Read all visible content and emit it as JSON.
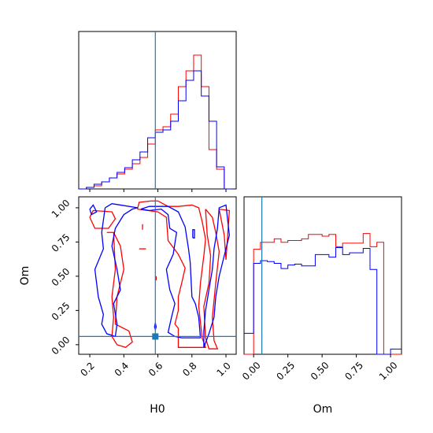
{
  "chart_data": {
    "type": "corner",
    "parameters": [
      "H0",
      "Om"
    ],
    "colors": {
      "run_a": "#ff0000",
      "run_b": "#0000ff",
      "truth": "#1f77b4"
    },
    "truth": {
      "H0": 0.585,
      "Om": 0.06
    },
    "xlabel_h0": "H0",
    "xlabel_om": "Om",
    "ylabel_om": "Om",
    "h0_ticks": [
      {
        "value": 0.2,
        "label": "0.2"
      },
      {
        "value": 0.4,
        "label": "0.4"
      },
      {
        "value": 0.6,
        "label": "0.6"
      },
      {
        "value": 0.8,
        "label": "0.8"
      },
      {
        "value": 1.0,
        "label": "1.0"
      }
    ],
    "om_ticks": [
      {
        "value": 0.0,
        "label": "0.00"
      },
      {
        "value": 0.25,
        "label": "0.25"
      },
      {
        "value": 0.5,
        "label": "0.50"
      },
      {
        "value": 0.75,
        "label": "0.75"
      },
      {
        "value": 1.0,
        "label": "1.00"
      }
    ],
    "h0_range": [
      0.135,
      1.06
    ],
    "om_range": [
      -0.07,
      1.08
    ],
    "hist_h0": {
      "edges": [
        0.135,
        0.18,
        0.225,
        0.27,
        0.315,
        0.36,
        0.405,
        0.45,
        0.495,
        0.54,
        0.585,
        0.63,
        0.675,
        0.72,
        0.765,
        0.81,
        0.855,
        0.9,
        0.945,
        0.99,
        1.035
      ],
      "red": [
        0,
        2,
        4,
        9,
        14,
        19,
        25,
        32,
        40,
        57,
        75,
        79,
        95,
        130,
        150,
        170,
        130,
        50,
        25,
        0
      ],
      "blue": [
        0,
        2,
        6,
        9,
        14,
        21,
        27,
        37,
        47,
        65,
        72,
        75,
        86,
        112,
        138,
        150,
        118,
        86,
        28,
        0
      ],
      "ylim": [
        0,
        200
      ]
    },
    "hist_om": {
      "edges": [
        0.0,
        0.05,
        0.1,
        0.15,
        0.2,
        0.25,
        0.3,
        0.35,
        0.4,
        0.45,
        0.5,
        0.55,
        0.6,
        0.65,
        0.7,
        0.75,
        0.8,
        0.85,
        0.9,
        0.95,
        1.0
      ],
      "red": [
        120,
        128,
        128,
        132,
        128,
        130,
        130,
        132,
        137,
        137,
        135,
        137,
        123,
        127,
        127,
        127,
        138,
        123,
        128,
        0
      ],
      "blue": [
        104,
        107,
        106,
        104,
        98,
        102,
        103,
        101,
        101,
        114,
        114,
        111,
        122,
        114,
        116,
        116,
        121,
        97,
        0,
        0
      ],
      "left_edge": -0.07,
      "right_edge": 1.08,
      "red_left": 0,
      "blue_left": 24,
      "blue_right": 6,
      "ylim": [
        0,
        180
      ]
    },
    "contours": {
      "red": [
        [
          [
            0.48,
            0.99
          ],
          [
            0.49,
            1.04
          ],
          [
            0.56,
            1.05
          ],
          [
            0.6,
            1.05
          ],
          [
            0.66,
            1.01
          ],
          [
            0.72,
            1.01
          ],
          [
            0.8,
            1.02
          ],
          [
            0.84,
            1.0
          ],
          [
            0.86,
            0.9
          ],
          [
            0.88,
            0.77
          ],
          [
            0.87,
            0.65
          ],
          [
            0.85,
            0.45
          ],
          [
            0.84,
            0.28
          ],
          [
            0.86,
            0.05
          ],
          [
            0.88,
            -0.02
          ],
          [
            0.84,
            -0.02
          ],
          [
            0.72,
            -0.02
          ],
          [
            0.72,
            0.12
          ],
          [
            0.7,
            0.15
          ],
          [
            0.72,
            0.25
          ],
          [
            0.72,
            0.35
          ],
          [
            0.74,
            0.45
          ],
          [
            0.76,
            0.56
          ],
          [
            0.72,
            0.66
          ],
          [
            0.66,
            0.76
          ],
          [
            0.65,
            0.93
          ],
          [
            0.6,
            0.97
          ],
          [
            0.48,
            0.99
          ]
        ],
        [
          [
            0.88,
            0.99
          ],
          [
            0.92,
            0.93
          ],
          [
            0.94,
            0.82
          ],
          [
            0.96,
            0.68
          ],
          [
            0.94,
            0.45
          ],
          [
            0.92,
            0.2
          ],
          [
            0.93,
            0.03
          ],
          [
            0.95,
            -0.03
          ],
          [
            0.9,
            -0.03
          ],
          [
            0.88,
            0.05
          ],
          [
            0.87,
            0.28
          ],
          [
            0.9,
            0.45
          ],
          [
            0.91,
            0.65
          ],
          [
            0.89,
            0.8
          ],
          [
            0.88,
            0.99
          ]
        ],
        [
          [
            0.96,
            0.99
          ],
          [
            0.99,
            0.8
          ],
          [
            1.0,
            0.62
          ],
          [
            1.02,
            0.98
          ],
          [
            0.96,
            0.99
          ]
        ],
        [
          [
            0.2,
            0.93
          ],
          [
            0.22,
            0.98
          ],
          [
            0.33,
            0.97
          ],
          [
            0.35,
            0.92
          ],
          [
            0.31,
            0.85
          ],
          [
            0.23,
            0.85
          ],
          [
            0.2,
            0.93
          ]
        ],
        [
          [
            0.3,
            0.82
          ],
          [
            0.34,
            0.82
          ],
          [
            0.35,
            0.55
          ],
          [
            0.33,
            0.35
          ],
          [
            0.34,
            0.2
          ],
          [
            0.33,
            0.06
          ],
          [
            0.36,
            0.0
          ],
          [
            0.41,
            -0.02
          ],
          [
            0.45,
            0.02
          ],
          [
            0.43,
            0.1
          ],
          [
            0.35,
            0.15
          ],
          [
            0.36,
            0.35
          ],
          [
            0.4,
            0.55
          ],
          [
            0.38,
            0.72
          ],
          [
            0.34,
            0.82
          ],
          [
            0.3,
            0.82
          ]
        ],
        [
          [
            0.51,
            0.88
          ],
          [
            0.51,
            0.84
          ]
        ],
        [
          [
            0.49,
            0.7
          ],
          [
            0.53,
            0.7
          ]
        ],
        [
          [
            0.59,
            0.47
          ],
          [
            0.59,
            0.5
          ]
        ]
      ],
      "blue": [
        [
          [
            0.5,
            0.99
          ],
          [
            0.55,
            0.98
          ],
          [
            0.62,
            0.99
          ],
          [
            0.66,
            0.95
          ],
          [
            0.67,
            0.85
          ],
          [
            0.71,
            0.82
          ],
          [
            0.69,
            0.66
          ],
          [
            0.65,
            0.55
          ],
          [
            0.67,
            0.4
          ],
          [
            0.7,
            0.3
          ],
          [
            0.68,
            0.2
          ],
          [
            0.66,
            0.09
          ],
          [
            0.7,
            0.06
          ],
          [
            0.74,
            0.05
          ],
          [
            0.83,
            0.05
          ],
          [
            0.85,
            0.05
          ],
          [
            0.84,
            0.2
          ],
          [
            0.82,
            0.3
          ],
          [
            0.8,
            0.35
          ],
          [
            0.79,
            0.6
          ],
          [
            0.78,
            0.7
          ],
          [
            0.76,
            0.86
          ],
          [
            0.72,
            0.97
          ],
          [
            0.66,
            1.01
          ],
          [
            0.55,
            1.01
          ],
          [
            0.5,
            0.99
          ]
        ],
        [
          [
            0.87,
            -0.02
          ],
          [
            0.87,
            0.1
          ],
          [
            0.88,
            0.25
          ],
          [
            0.9,
            0.4
          ],
          [
            0.92,
            0.55
          ],
          [
            0.93,
            0.7
          ],
          [
            0.95,
            0.85
          ],
          [
            0.96,
            1.0
          ],
          [
            1.0,
            1.02
          ],
          [
            1.02,
            0.8
          ],
          [
            0.99,
            0.65
          ],
          [
            0.96,
            0.5
          ],
          [
            0.94,
            0.35
          ],
          [
            0.93,
            0.2
          ],
          [
            0.9,
            0.08
          ],
          [
            0.87,
            -0.02
          ]
        ],
        [
          [
            0.2,
            0.99
          ],
          [
            0.22,
            1.02
          ],
          [
            0.24,
            0.97
          ],
          [
            0.21,
            0.95
          ],
          [
            0.2,
            0.99
          ]
        ],
        [
          [
            0.29,
            1.0
          ],
          [
            0.27,
            0.82
          ],
          [
            0.28,
            0.7
          ],
          [
            0.23,
            0.55
          ],
          [
            0.25,
            0.35
          ],
          [
            0.28,
            0.22
          ],
          [
            0.27,
            0.15
          ],
          [
            0.3,
            0.08
          ],
          [
            0.35,
            0.06
          ],
          [
            0.36,
            0.15
          ],
          [
            0.34,
            0.3
          ],
          [
            0.38,
            0.4
          ],
          [
            0.36,
            0.55
          ],
          [
            0.33,
            0.72
          ],
          [
            0.35,
            0.85
          ],
          [
            0.4,
            0.95
          ],
          [
            0.45,
            0.99
          ],
          [
            0.48,
            1.0
          ],
          [
            0.38,
            1.02
          ],
          [
            0.33,
            1.03
          ],
          [
            0.29,
            1.0
          ]
        ],
        [
          [
            0.805,
            0.78
          ],
          [
            0.815,
            0.78
          ],
          [
            0.815,
            0.84
          ],
          [
            0.805,
            0.84
          ],
          [
            0.805,
            0.78
          ]
        ],
        [
          [
            0.58,
            0.13
          ],
          [
            0.585,
            0.16
          ],
          [
            0.59,
            0.13
          ],
          [
            0.585,
            0.11
          ],
          [
            0.58,
            0.13
          ]
        ]
      ]
    }
  }
}
